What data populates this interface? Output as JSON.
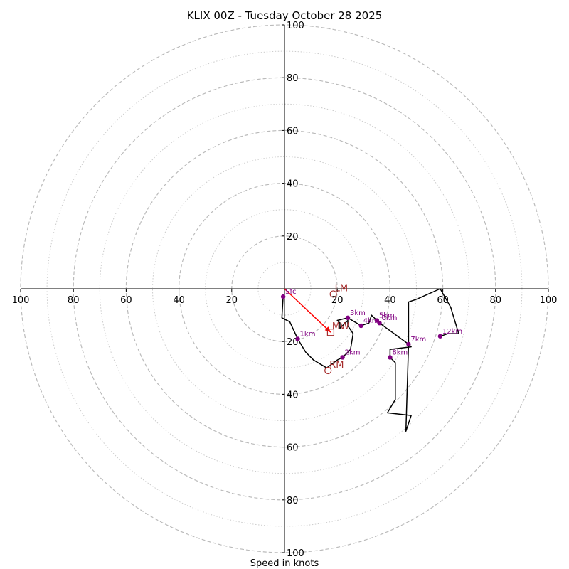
{
  "chart_data": {
    "type": "hodograph",
    "title": "KLIX 00Z - Tuesday October 28 2025",
    "xlabel": "Speed in knots",
    "xlim": [
      -100,
      100
    ],
    "ylim": [
      -100,
      100
    ],
    "ticks": [
      100,
      80,
      60,
      40,
      20
    ],
    "major_rings": [
      20,
      40,
      60,
      80,
      100
    ],
    "minor_rings": [
      10,
      30,
      50,
      70,
      90
    ],
    "trace": [
      [
        -0.5,
        -3
      ],
      [
        -1,
        -11
      ],
      [
        2,
        -12.5
      ],
      [
        5,
        -19
      ],
      [
        8,
        -24
      ],
      [
        11,
        -27
      ],
      [
        16,
        -30
      ],
      [
        20,
        -27
      ],
      [
        22,
        -26
      ],
      [
        25,
        -23
      ],
      [
        26,
        -17
      ],
      [
        24,
        -14
      ],
      [
        24,
        -12
      ],
      [
        22,
        -14
      ],
      [
        21,
        -15
      ],
      [
        21,
        -13
      ],
      [
        20,
        -12
      ],
      [
        24,
        -11
      ],
      [
        29,
        -14
      ],
      [
        32,
        -13
      ],
      [
        33,
        -10
      ],
      [
        35,
        -12
      ],
      [
        36,
        -13
      ],
      [
        47,
        -21
      ],
      [
        48,
        -22
      ],
      [
        40,
        -23
      ],
      [
        40,
        -26
      ],
      [
        42,
        -28
      ],
      [
        42,
        -30
      ],
      [
        42,
        -42
      ],
      [
        39,
        -47
      ],
      [
        48,
        -48
      ],
      [
        46,
        -54
      ],
      [
        46,
        -54
      ],
      [
        47,
        -21
      ],
      [
        47,
        -5
      ],
      [
        50,
        -4
      ],
      [
        59,
        0
      ],
      [
        63,
        -7
      ],
      [
        66,
        -17
      ],
      [
        62,
        -17
      ],
      [
        59,
        -18
      ]
    ],
    "height_labels": [
      {
        "label": "Sfc",
        "u": -0.5,
        "v": -3
      },
      {
        "label": "1km",
        "u": 5,
        "v": -19
      },
      {
        "label": "2km",
        "u": 22,
        "v": -26
      },
      {
        "label": "3km",
        "u": 24,
        "v": -11
      },
      {
        "label": "4km",
        "u": 29,
        "v": -14
      },
      {
        "label": "5km",
        "u": 35,
        "v": -12
      },
      {
        "label": "6km",
        "u": 36,
        "v": -13
      },
      {
        "label": "7km",
        "u": 47,
        "v": -21
      },
      {
        "label": "8km",
        "u": 40,
        "v": -26
      },
      {
        "label": "12km",
        "u": 59,
        "v": -18
      }
    ],
    "markers": [
      {
        "label": "LM",
        "u": 18.5,
        "v": -2,
        "shape": "circle"
      },
      {
        "label": "MW",
        "u": 17.5,
        "v": -16.5,
        "shape": "square"
      },
      {
        "label": "RM",
        "u": 16.5,
        "v": -31,
        "shape": "circle"
      }
    ],
    "shear_vector": {
      "from": [
        0,
        0
      ],
      "to": [
        17.5,
        -16.5
      ]
    },
    "colors": {
      "trace": "#000000",
      "heights": "#800080",
      "markers": "#a52a2a",
      "shear": "#ff0000",
      "grid": "#bbbbbb",
      "minor_grid": "#cccccc"
    }
  }
}
